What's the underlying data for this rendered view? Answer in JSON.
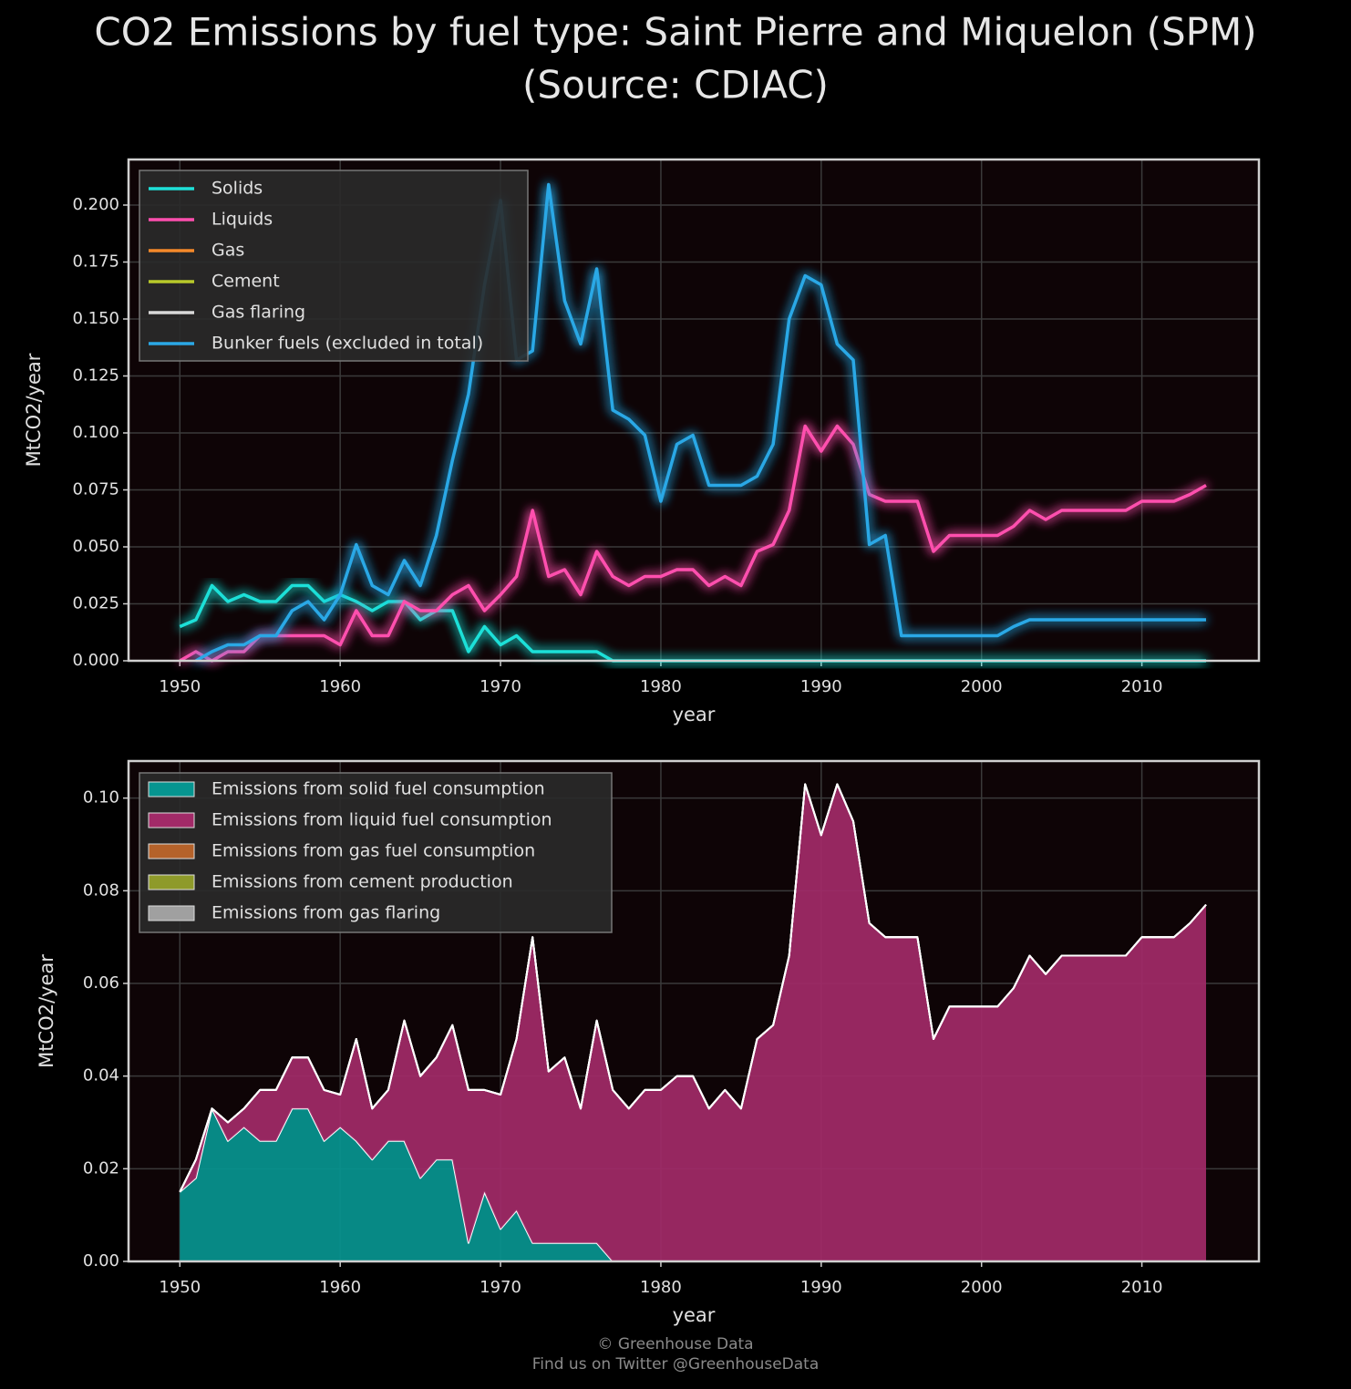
{
  "title": [
    "CO2 Emissions by fuel type: Saint Pierre and Miquelon (SPM)",
    "(Source: CDIAC)"
  ],
  "footer": [
    "© Greenhouse Data",
    "Find us on Twitter @GreenhouseData"
  ],
  "chart_data": [
    {
      "type": "line",
      "xlabel": "year",
      "ylabel": "MtCO2/year",
      "x": [
        1950,
        1951,
        1952,
        1953,
        1954,
        1955,
        1956,
        1957,
        1958,
        1959,
        1960,
        1961,
        1962,
        1963,
        1964,
        1965,
        1966,
        1967,
        1968,
        1969,
        1970,
        1971,
        1972,
        1973,
        1974,
        1975,
        1976,
        1977,
        1978,
        1979,
        1980,
        1981,
        1982,
        1983,
        1984,
        1985,
        1986,
        1987,
        1988,
        1989,
        1990,
        1991,
        1992,
        1993,
        1994,
        1995,
        1996,
        1997,
        1998,
        1999,
        2000,
        2001,
        2002,
        2003,
        2004,
        2005,
        2006,
        2007,
        2008,
        2009,
        2010,
        2011,
        2012,
        2013,
        2014
      ],
      "xlim": [
        1946.8,
        2017.3
      ],
      "xticks": [
        1950,
        1960,
        1970,
        1980,
        1990,
        2000,
        2010
      ],
      "ylim": [
        0,
        0.22
      ],
      "yticks": [
        {
          "value": 0,
          "label": "0.000"
        },
        {
          "value": 0.025,
          "label": "0.025"
        },
        {
          "value": 0.05,
          "label": "0.050"
        },
        {
          "value": 0.075,
          "label": "0.075"
        },
        {
          "value": 0.1,
          "label": "0.100"
        },
        {
          "value": 0.125,
          "label": "0.125"
        },
        {
          "value": 0.15,
          "label": "0.150"
        },
        {
          "value": 0.175,
          "label": "0.175"
        },
        {
          "value": 0.2,
          "label": "0.200"
        }
      ],
      "grid": true,
      "legend": "upper left",
      "series": [
        {
          "name": "Solids",
          "color": "#1fe0d8",
          "values": [
            0.015,
            0.018,
            0.033,
            0.026,
            0.029,
            0.026,
            0.026,
            0.033,
            0.033,
            0.026,
            0.029,
            0.026,
            0.022,
            0.026,
            0.026,
            0.018,
            0.022,
            0.022,
            0.004,
            0.015,
            0.007,
            0.011,
            0.004,
            0.004,
            0.004,
            0.004,
            0.004,
            0,
            0,
            0,
            0,
            0,
            0,
            0,
            0,
            0,
            0,
            0,
            0,
            0,
            0,
            0,
            0,
            0,
            0,
            0,
            0,
            0,
            0,
            0,
            0,
            0,
            0,
            0,
            0,
            0,
            0,
            0,
            0,
            0,
            0,
            0,
            0,
            0,
            0
          ]
        },
        {
          "name": "Liquids",
          "color": "#ff4fae",
          "values": [
            0,
            0.004,
            0,
            0.004,
            0.004,
            0.011,
            0.011,
            0.011,
            0.011,
            0.011,
            0.007,
            0.022,
            0.011,
            0.011,
            0.026,
            0.022,
            0.022,
            0.029,
            0.033,
            0.022,
            0.029,
            0.037,
            0.066,
            0.037,
            0.04,
            0.029,
            0.048,
            0.037,
            0.033,
            0.037,
            0.037,
            0.04,
            0.04,
            0.033,
            0.037,
            0.033,
            0.048,
            0.051,
            0.066,
            0.103,
            0.092,
            0.103,
            0.095,
            0.073,
            0.07,
            0.07,
            0.07,
            0.048,
            0.055,
            0.055,
            0.055,
            0.055,
            0.059,
            0.066,
            0.062,
            0.066,
            0.066,
            0.066,
            0.066,
            0.066,
            0.07,
            0.07,
            0.07,
            0.073,
            0.077
          ]
        },
        {
          "name": "Gas",
          "color": "#f5892a",
          "values": [
            0,
            0,
            0,
            0,
            0,
            0,
            0,
            0,
            0,
            0,
            0,
            0,
            0,
            0,
            0,
            0,
            0,
            0,
            0,
            0,
            0,
            0,
            0,
            0,
            0,
            0,
            0,
            0,
            0,
            0,
            0,
            0,
            0,
            0,
            0,
            0,
            0,
            0,
            0,
            0,
            0,
            0,
            0,
            0,
            0,
            0,
            0,
            0,
            0,
            0,
            0,
            0,
            0,
            0,
            0,
            0,
            0,
            0,
            0,
            0,
            0,
            0,
            0,
            0,
            0
          ]
        },
        {
          "name": "Cement",
          "color": "#b8c92a",
          "values": [
            0,
            0,
            0,
            0,
            0,
            0,
            0,
            0,
            0,
            0,
            0,
            0,
            0,
            0,
            0,
            0,
            0,
            0,
            0,
            0,
            0,
            0,
            0,
            0,
            0,
            0,
            0,
            0,
            0,
            0,
            0,
            0,
            0,
            0,
            0,
            0,
            0,
            0,
            0,
            0,
            0,
            0,
            0,
            0,
            0,
            0,
            0,
            0,
            0,
            0,
            0,
            0,
            0,
            0,
            0,
            0,
            0,
            0,
            0,
            0,
            0,
            0,
            0,
            0,
            0
          ]
        },
        {
          "name": "Gas flaring",
          "color": "#d9d9d9",
          "values": [
            0,
            0,
            0,
            0,
            0,
            0,
            0,
            0,
            0,
            0,
            0,
            0,
            0,
            0,
            0,
            0,
            0,
            0,
            0,
            0,
            0,
            0,
            0,
            0,
            0,
            0,
            0,
            0,
            0,
            0,
            0,
            0,
            0,
            0,
            0,
            0,
            0,
            0,
            0,
            0,
            0,
            0,
            0,
            0,
            0,
            0,
            0,
            0,
            0,
            0,
            0,
            0,
            0,
            0,
            0,
            0,
            0,
            0,
            0,
            0,
            0,
            0,
            0,
            0,
            0
          ]
        },
        {
          "name": "Bunker fuels (excluded in total)",
          "color": "#2ba8e6",
          "values": [
            null,
            0,
            0.004,
            0.007,
            0.007,
            0.011,
            0.011,
            0.022,
            0.026,
            0.018,
            0.029,
            0.051,
            0.033,
            0.029,
            0.044,
            0.033,
            0.055,
            0.088,
            0.117,
            0.165,
            0.202,
            0.132,
            0.136,
            0.209,
            0.158,
            0.139,
            0.172,
            0.11,
            0.106,
            0.099,
            0.07,
            0.095,
            0.099,
            0.077,
            0.077,
            0.077,
            0.081,
            0.095,
            0.15,
            0.169,
            0.165,
            0.139,
            0.132,
            0.051,
            0.055,
            0.011,
            0.011,
            0.011,
            0.011,
            0.011,
            0.011,
            0.011,
            0.015,
            0.018,
            0.018,
            0.018,
            0.018,
            0.018,
            0.018,
            0.018,
            0.018,
            0.018,
            0.018,
            0.018,
            0.018
          ]
        }
      ]
    },
    {
      "type": "stacked_area",
      "xlabel": "year",
      "ylabel": "MtCO2/year",
      "x": [
        1950,
        1951,
        1952,
        1953,
        1954,
        1955,
        1956,
        1957,
        1958,
        1959,
        1960,
        1961,
        1962,
        1963,
        1964,
        1965,
        1966,
        1967,
        1968,
        1969,
        1970,
        1971,
        1972,
        1973,
        1974,
        1975,
        1976,
        1977,
        1978,
        1979,
        1980,
        1981,
        1982,
        1983,
        1984,
        1985,
        1986,
        1987,
        1988,
        1989,
        1990,
        1991,
        1992,
        1993,
        1994,
        1995,
        1996,
        1997,
        1998,
        1999,
        2000,
        2001,
        2002,
        2003,
        2004,
        2005,
        2006,
        2007,
        2008,
        2009,
        2010,
        2011,
        2012,
        2013,
        2014
      ],
      "xlim": [
        1946.8,
        2017.3
      ],
      "xticks": [
        1950,
        1960,
        1970,
        1980,
        1990,
        2000,
        2010
      ],
      "ylim": [
        0,
        0.108
      ],
      "yticks": [
        {
          "value": 0,
          "label": "0.00"
        },
        {
          "value": 0.02,
          "label": "0.02"
        },
        {
          "value": 0.04,
          "label": "0.04"
        },
        {
          "value": 0.06,
          "label": "0.06"
        },
        {
          "value": 0.08,
          "label": "0.08"
        },
        {
          "value": 0.1,
          "label": "0.10"
        }
      ],
      "grid": true,
      "legend": "upper left",
      "series": [
        {
          "name": "Emissions from solid fuel consumption",
          "color": "#069590",
          "values": [
            0.015,
            0.018,
            0.033,
            0.026,
            0.029,
            0.026,
            0.026,
            0.033,
            0.033,
            0.026,
            0.029,
            0.026,
            0.022,
            0.026,
            0.026,
            0.018,
            0.022,
            0.022,
            0.004,
            0.015,
            0.007,
            0.011,
            0.004,
            0.004,
            0.004,
            0.004,
            0.004,
            0,
            0,
            0,
            0,
            0,
            0,
            0,
            0,
            0,
            0,
            0,
            0,
            0,
            0,
            0,
            0,
            0,
            0,
            0,
            0,
            0,
            0,
            0,
            0,
            0,
            0,
            0,
            0,
            0,
            0,
            0,
            0,
            0,
            0,
            0,
            0,
            0,
            0
          ]
        },
        {
          "name": "Emissions from liquid fuel consumption",
          "color": "#a22a68",
          "values": [
            0,
            0.004,
            0,
            0.004,
            0.004,
            0.011,
            0.011,
            0.011,
            0.011,
            0.011,
            0.007,
            0.022,
            0.011,
            0.011,
            0.026,
            0.022,
            0.022,
            0.029,
            0.033,
            0.022,
            0.029,
            0.037,
            0.066,
            0.037,
            0.04,
            0.029,
            0.048,
            0.037,
            0.033,
            0.037,
            0.037,
            0.04,
            0.04,
            0.033,
            0.037,
            0.033,
            0.048,
            0.051,
            0.066,
            0.103,
            0.092,
            0.103,
            0.095,
            0.073,
            0.07,
            0.07,
            0.07,
            0.048,
            0.055,
            0.055,
            0.055,
            0.055,
            0.059,
            0.066,
            0.062,
            0.066,
            0.066,
            0.066,
            0.066,
            0.066,
            0.07,
            0.07,
            0.07,
            0.073,
            0.077
          ]
        },
        {
          "name": "Emissions from gas fuel consumption",
          "color": "#b5622a",
          "values": [
            0,
            0,
            0,
            0,
            0,
            0,
            0,
            0,
            0,
            0,
            0,
            0,
            0,
            0,
            0,
            0,
            0,
            0,
            0,
            0,
            0,
            0,
            0,
            0,
            0,
            0,
            0,
            0,
            0,
            0,
            0,
            0,
            0,
            0,
            0,
            0,
            0,
            0,
            0,
            0,
            0,
            0,
            0,
            0,
            0,
            0,
            0,
            0,
            0,
            0,
            0,
            0,
            0,
            0,
            0,
            0,
            0,
            0,
            0,
            0,
            0,
            0,
            0,
            0,
            0
          ]
        },
        {
          "name": "Emissions from cement production",
          "color": "#8e9a2a",
          "values": [
            0,
            0,
            0,
            0,
            0,
            0,
            0,
            0,
            0,
            0,
            0,
            0,
            0,
            0,
            0,
            0,
            0,
            0,
            0,
            0,
            0,
            0,
            0,
            0,
            0,
            0,
            0,
            0,
            0,
            0,
            0,
            0,
            0,
            0,
            0,
            0,
            0,
            0,
            0,
            0,
            0,
            0,
            0,
            0,
            0,
            0,
            0,
            0,
            0,
            0,
            0,
            0,
            0,
            0,
            0,
            0,
            0,
            0,
            0,
            0,
            0,
            0,
            0,
            0,
            0
          ]
        },
        {
          "name": "Emissions from gas flaring",
          "color": "#a0a0a0",
          "values": [
            0,
            0,
            0,
            0,
            0,
            0,
            0,
            0,
            0,
            0,
            0,
            0,
            0,
            0,
            0,
            0,
            0,
            0,
            0,
            0,
            0,
            0,
            0,
            0,
            0,
            0,
            0,
            0,
            0,
            0,
            0,
            0,
            0,
            0,
            0,
            0,
            0,
            0,
            0,
            0,
            0,
            0,
            0,
            0,
            0,
            0,
            0,
            0,
            0,
            0,
            0,
            0,
            0,
            0,
            0,
            0,
            0,
            0,
            0,
            0,
            0,
            0,
            0,
            0,
            0
          ]
        }
      ]
    }
  ]
}
